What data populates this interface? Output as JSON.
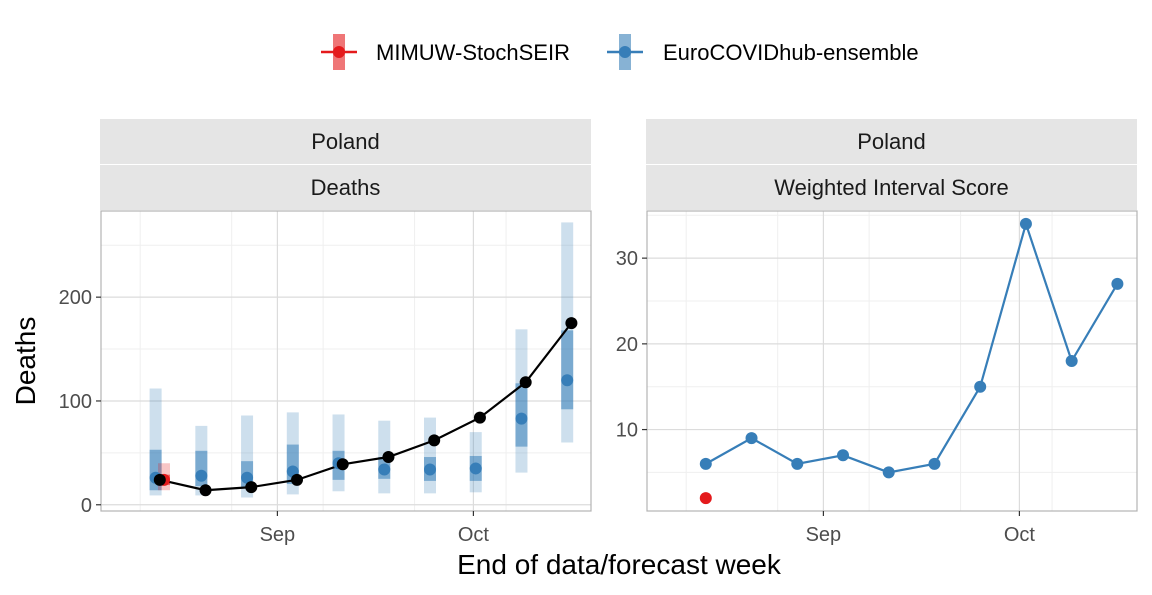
{
  "colors": {
    "mimuw": "#e41a1c",
    "ensemble": "#377eb8",
    "truth": "#000000",
    "strip_bg": "#e5e5e5",
    "grid_major": "#dcdcdc",
    "grid_minor": "#efefef",
    "panel_border": "#b3b3b3"
  },
  "legend": {
    "items": [
      {
        "label": "MIMUW-StochSEIR",
        "color": "#e41a1c"
      },
      {
        "label": "EuroCOVIDhub-ensemble",
        "color": "#377eb8"
      }
    ]
  },
  "xlabel": "End of data/forecast week",
  "chart_data": [
    {
      "type": "line",
      "strip": [
        "Poland",
        "Deaths"
      ],
      "ylabel": "Deaths",
      "x_axis": {
        "type": "date",
        "range": [
          "2021-08-05",
          "2021-10-19"
        ],
        "ticks": [
          "2021-09-01",
          "2021-10-01"
        ],
        "tick_labels": [
          "Sep",
          "Oct"
        ]
      },
      "y_axis": {
        "range": [
          -6,
          283
        ],
        "ticks": [
          0,
          100,
          200
        ],
        "tick_labels": [
          "0",
          "100",
          "200"
        ]
      },
      "grid": true,
      "truth": {
        "x": [
          "2021-08-14",
          "2021-08-21",
          "2021-08-28",
          "2021-09-04",
          "2021-09-11",
          "2021-09-18",
          "2021-09-25",
          "2021-10-02",
          "2021-10-09"
        ],
        "y": [
          24,
          14,
          17,
          24,
          39,
          46,
          62,
          84,
          118
        ]
      },
      "truth_last": {
        "x": "2021-10-16",
        "y": 175
      },
      "series": [
        {
          "name": "EuroCOVIDhub-ensemble",
          "points": [
            {
              "x": "2021-08-14",
              "median": 26,
              "lower50": 14,
              "upper50": 53,
              "lower95": 9,
              "upper95": 112
            },
            {
              "x": "2021-08-21",
              "median": 28,
              "lower50": 18,
              "upper50": 52,
              "lower95": 9,
              "upper95": 76
            },
            {
              "x": "2021-08-28",
              "median": 26,
              "lower50": 17,
              "upper50": 42,
              "lower95": 7,
              "upper95": 86
            },
            {
              "x": "2021-09-04",
              "median": 32,
              "lower50": 20,
              "upper50": 58,
              "lower95": 10,
              "upper95": 89
            },
            {
              "x": "2021-09-11",
              "median": 40,
              "lower50": 24,
              "upper50": 52,
              "lower95": 13,
              "upper95": 87
            },
            {
              "x": "2021-09-18",
              "median": 34,
              "lower50": 25,
              "upper50": 46,
              "lower95": 11,
              "upper95": 81
            },
            {
              "x": "2021-09-25",
              "median": 34,
              "lower50": 23,
              "upper50": 46,
              "lower95": 11,
              "upper95": 84
            },
            {
              "x": "2021-10-02",
              "median": 35,
              "lower50": 23,
              "upper50": 47,
              "lower95": 12,
              "upper95": 70
            },
            {
              "x": "2021-10-09",
              "median": 83,
              "lower50": 56,
              "upper50": 117,
              "lower95": 31,
              "upper95": 169
            },
            {
              "x": "2021-10-16",
              "median": 120,
              "lower50": 92,
              "upper50": 168,
              "lower95": 60,
              "upper95": 272
            }
          ]
        },
        {
          "name": "MIMUW-StochSEIR",
          "points": [
            {
              "x": "2021-08-14",
              "median": 24,
              "lower50": 19,
              "upper50": 29,
              "lower95": 14,
              "upper95": 40
            }
          ]
        }
      ]
    },
    {
      "type": "line",
      "strip": [
        "Poland",
        "Weighted Interval Score"
      ],
      "x_axis": {
        "type": "date",
        "range": [
          "2021-08-05",
          "2021-10-19"
        ],
        "ticks": [
          "2021-09-01",
          "2021-10-01"
        ],
        "tick_labels": [
          "Sep",
          "Oct"
        ]
      },
      "y_axis": {
        "range": [
          0.5,
          35.5
        ],
        "ticks": [
          10,
          20,
          30
        ],
        "tick_labels": [
          "10",
          "20",
          "30"
        ]
      },
      "grid": true,
      "series": [
        {
          "name": "EuroCOVIDhub-ensemble",
          "x": [
            "2021-08-14",
            "2021-08-21",
            "2021-08-28",
            "2021-09-04",
            "2021-09-11",
            "2021-09-18",
            "2021-09-25",
            "2021-10-02",
            "2021-10-09",
            "2021-10-16"
          ],
          "y": [
            6,
            9,
            6,
            7,
            5,
            6,
            15,
            34,
            18,
            27
          ]
        },
        {
          "name": "MIMUW-StochSEIR",
          "x": [
            "2021-08-14"
          ],
          "y": [
            2
          ]
        }
      ]
    }
  ]
}
